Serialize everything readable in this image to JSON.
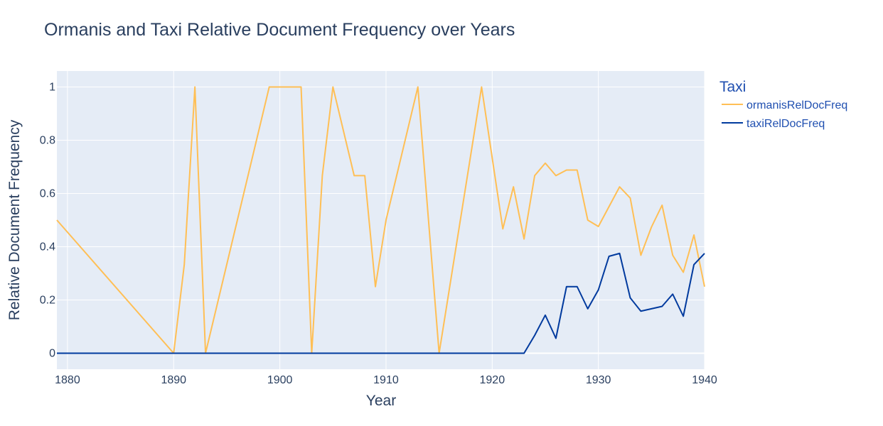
{
  "chart_data": {
    "type": "line",
    "title": "Ormanis and Taxi Relative Document Frequency over Years",
    "xlabel": "Year",
    "ylabel": "Relative Document Frequency",
    "xlim": [
      1879,
      1940
    ],
    "ylim": [
      -0.06,
      1.06
    ],
    "x_ticks": [
      1880,
      1890,
      1900,
      1910,
      1920,
      1930,
      1940
    ],
    "y_ticks": [
      0,
      0.2,
      0.4,
      0.6,
      0.8,
      1
    ],
    "y_tick_labels": [
      "0",
      "0.2",
      "0.4",
      "0.6",
      "0.8",
      "1"
    ],
    "grid": true,
    "legend_title": "Taxi",
    "legend_position": "right",
    "colors": {
      "plot_bg": "#e5ecf6",
      "ormanis": "#ffbf55",
      "taxi": "#003a9e",
      "text": "#2a3f5f"
    },
    "series": [
      {
        "name": "ormanisRelDocFreq",
        "color": "#ffbf55",
        "points": [
          [
            1879,
            0.5
          ],
          [
            1890,
            0
          ],
          [
            1891,
            0.333
          ],
          [
            1892,
            1
          ],
          [
            1893,
            0
          ],
          [
            1899,
            1
          ],
          [
            1902,
            1
          ],
          [
            1903,
            0
          ],
          [
            1904,
            0.667
          ],
          [
            1905,
            1
          ],
          [
            1907,
            0.667
          ],
          [
            1908,
            0.667
          ],
          [
            1909,
            0.25
          ],
          [
            1910,
            0.5
          ],
          [
            1913,
            1
          ],
          [
            1915,
            0
          ],
          [
            1919,
            1
          ],
          [
            1921,
            0.467
          ],
          [
            1922,
            0.625
          ],
          [
            1923,
            0.429
          ],
          [
            1924,
            0.667
          ],
          [
            1925,
            0.714
          ],
          [
            1926,
            0.667
          ],
          [
            1927,
            0.688
          ],
          [
            1928,
            0.688
          ],
          [
            1929,
            0.5
          ],
          [
            1930,
            0.476
          ],
          [
            1932,
            0.625
          ],
          [
            1933,
            0.583
          ],
          [
            1934,
            0.368
          ],
          [
            1935,
            0.474
          ],
          [
            1936,
            0.556
          ],
          [
            1937,
            0.368
          ],
          [
            1938,
            0.304
          ],
          [
            1939,
            0.444
          ],
          [
            1940,
            0.25
          ]
        ]
      },
      {
        "name": "taxiRelDocFreq",
        "color": "#003a9e",
        "points": [
          [
            1879,
            0
          ],
          [
            1923,
            0
          ],
          [
            1924,
            0.067
          ],
          [
            1925,
            0.143
          ],
          [
            1926,
            0.056
          ],
          [
            1927,
            0.25
          ],
          [
            1928,
            0.25
          ],
          [
            1929,
            0.167
          ],
          [
            1930,
            0.238
          ],
          [
            1931,
            0.364
          ],
          [
            1932,
            0.375
          ],
          [
            1933,
            0.208
          ],
          [
            1934,
            0.158
          ],
          [
            1935,
            0.167
          ],
          [
            1936,
            0.176
          ],
          [
            1937,
            0.222
          ],
          [
            1938,
            0.139
          ],
          [
            1939,
            0.333
          ],
          [
            1940,
            0.375
          ]
        ]
      }
    ]
  }
}
